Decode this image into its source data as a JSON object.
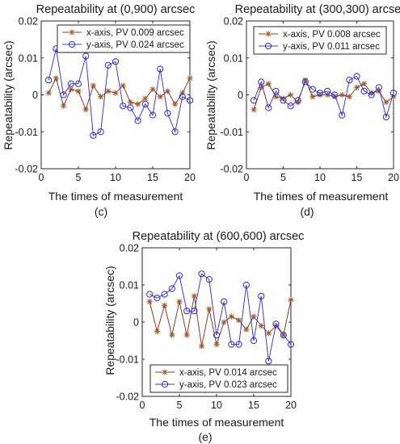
{
  "figure": {
    "panels": [
      {
        "id": "c",
        "label": "(c)"
      },
      {
        "id": "d",
        "label": "(d)"
      },
      {
        "id": "e",
        "label": "(e)"
      }
    ],
    "colors": {
      "x_series": "#8a3b22",
      "y_series": "#3b3bd6",
      "x_marker": "#9a5a2a",
      "y_marker": "#2a2ac8"
    }
  },
  "chart_data": [
    {
      "type": "line",
      "title": "Repeatability at (0,900) arcsec",
      "xlabel": "The times of measurement",
      "ylabel": "Repeatability (arcsec)",
      "xlim": [
        0,
        20
      ],
      "ylim": [
        -0.02,
        0.02
      ],
      "xticks": [
        "0",
        "5",
        "10",
        "15",
        "20"
      ],
      "yticks": [
        "-0.02",
        "-0.01",
        "0",
        "0.01",
        "0.02"
      ],
      "legend_position": "top-left",
      "x": [
        1,
        2,
        3,
        4,
        5,
        6,
        7,
        8,
        9,
        10,
        11,
        12,
        13,
        14,
        15,
        16,
        17,
        18,
        19,
        20
      ],
      "series": [
        {
          "name": "x-axis, PV 0.009 arcsec",
          "marker": "star",
          "values": [
            0.0005,
            0.0045,
            -0.003,
            0.0015,
            0.001,
            -0.004,
            0.0025,
            -0.0005,
            0.001,
            0.0005,
            0.0025,
            -0.002,
            -0.0025,
            -0.001,
            0.0015,
            -0.0005,
            0.001,
            -0.0025,
            0.0005,
            0.0045
          ]
        },
        {
          "name": "y-axis, PV 0.024 arcsec",
          "marker": "circle",
          "values": [
            0.004,
            0.0125,
            0.0,
            0.003,
            0.003,
            0.0105,
            -0.011,
            -0.01,
            0.008,
            0.009,
            -0.003,
            -0.0035,
            -0.007,
            -0.0025,
            -0.0055,
            0.007,
            -0.005,
            -0.01,
            -0.0005,
            -0.0015
          ]
        }
      ]
    },
    {
      "type": "line",
      "title": "Repeatability at (300,300) arcsec",
      "xlabel": "The times of measurement",
      "ylabel": "Repeatability (arcsec)",
      "xlim": [
        0,
        20
      ],
      "ylim": [
        -0.02,
        0.02
      ],
      "xticks": [
        "0",
        "5",
        "10",
        "15",
        "20"
      ],
      "yticks": [
        "-0.02",
        "-0.01",
        "0",
        "0.01",
        "0.02"
      ],
      "legend_position": "top-left",
      "x": [
        1,
        2,
        3,
        4,
        5,
        6,
        7,
        8,
        9,
        10,
        11,
        12,
        13,
        14,
        15,
        16,
        17,
        18,
        19,
        20
      ],
      "series": [
        {
          "name": "x-axis, PV 0.008 arcsec",
          "marker": "star",
          "values": [
            -0.004,
            0.002,
            0.003,
            -0.0005,
            -0.001,
            0.0,
            -0.002,
            0.004,
            -0.0005,
            0.0,
            0.0,
            -0.0005,
            0.0,
            -0.0005,
            0.002,
            0.003,
            0.0005,
            0.001,
            -0.002,
            -0.0005
          ]
        },
        {
          "name": "y-axis, PV 0.011 arcsec",
          "marker": "circle",
          "values": [
            -0.0015,
            0.0035,
            -0.0035,
            0.001,
            -0.0015,
            -0.003,
            -0.0015,
            0.0035,
            0.0015,
            0.0005,
            0.001,
            0.0,
            -0.0055,
            0.004,
            0.005,
            0.001,
            0.0,
            0.002,
            -0.006,
            0.0005
          ]
        }
      ]
    },
    {
      "type": "line",
      "title": "Repeatability at (600,600) arcsec",
      "xlabel": "The times of measurement",
      "ylabel": "Repeatability (arcsec)",
      "xlim": [
        0,
        20
      ],
      "ylim": [
        -0.02,
        0.02
      ],
      "xticks": [
        "0",
        "5",
        "10",
        "15",
        "20"
      ],
      "yticks": [
        "-0.02",
        "-0.01",
        "0",
        "0.01",
        "0.02"
      ],
      "legend_position": "bottom-left",
      "x": [
        1,
        2,
        3,
        4,
        5,
        6,
        7,
        8,
        9,
        10,
        11,
        12,
        13,
        14,
        15,
        16,
        17,
        18,
        19,
        20
      ],
      "series": [
        {
          "name": "x-axis, PV 0.014 arcsec",
          "marker": "star",
          "values": [
            0.0055,
            -0.0025,
            0.0045,
            -0.0035,
            0.0055,
            -0.0035,
            0.007,
            -0.0065,
            0.0035,
            -0.006,
            0.0,
            0.0015,
            0.0005,
            -0.002,
            0.0015,
            -0.001,
            -0.003,
            -0.001,
            -0.0035,
            0.006
          ]
        },
        {
          "name": "y-axis, PV 0.023 arcsec",
          "marker": "circle",
          "values": [
            0.0075,
            0.0065,
            0.0075,
            0.009,
            0.0125,
            0.003,
            0.003,
            0.013,
            0.0115,
            -0.0035,
            0.0055,
            -0.006,
            -0.006,
            0.01,
            -0.005,
            0.007,
            -0.0105,
            -0.0005,
            -0.0035,
            -0.006
          ]
        }
      ]
    }
  ]
}
